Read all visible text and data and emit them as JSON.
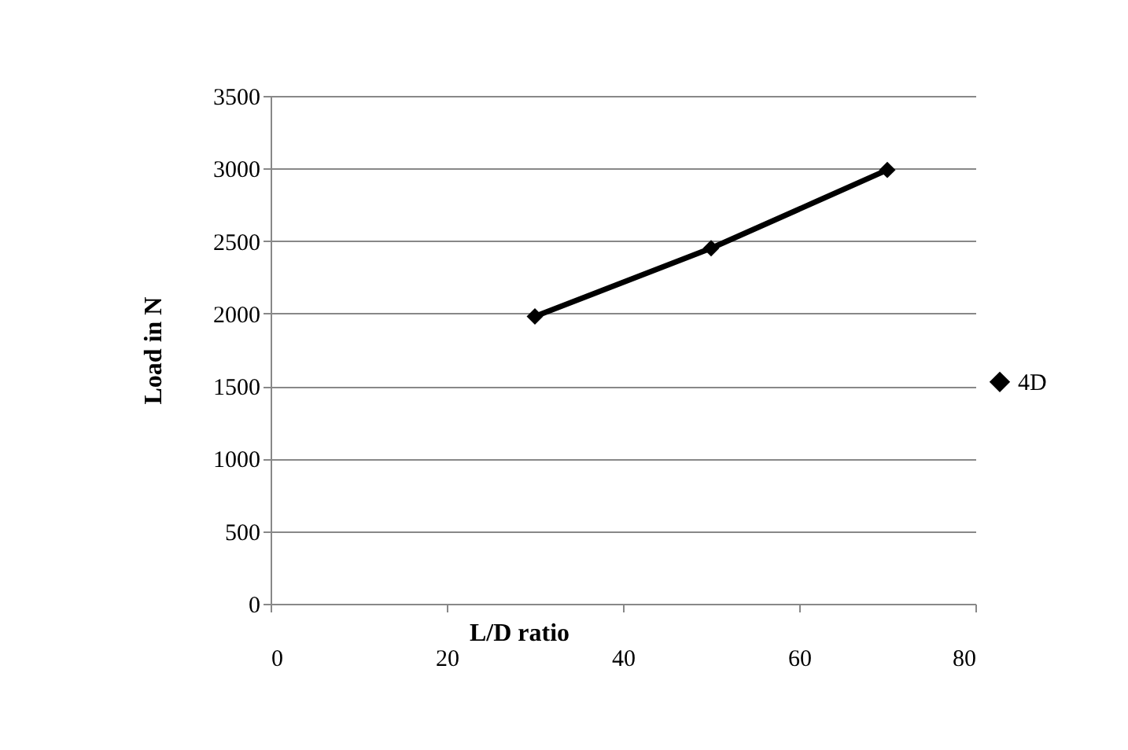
{
  "chart_data": {
    "type": "line",
    "xlabel": "L/D ratio",
    "ylabel": "Load in N",
    "x": [
      30,
      50,
      70
    ],
    "series": [
      {
        "name": "4D",
        "color": "#000000",
        "values": [
          1980,
          2450,
          2990
        ]
      }
    ],
    "xlim": [
      0,
      80
    ],
    "xticks": [
      0,
      20,
      40,
      60,
      80
    ],
    "ylim": [
      0,
      3500
    ],
    "yticks": [
      0,
      500,
      1000,
      1500,
      2000,
      2500,
      3000,
      3500
    ],
    "grid": "y",
    "legend": "right",
    "marker": "diamond",
    "line_style": "solid"
  }
}
